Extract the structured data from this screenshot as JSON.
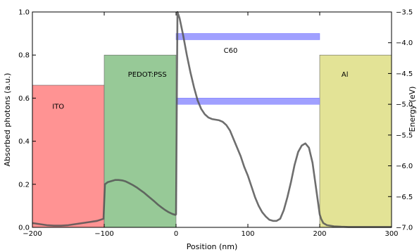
{
  "chart_data": {
    "type": "line",
    "xlabel": "Position (nm)",
    "ylabel": "Absorbed photons (a.u.)",
    "y2label": "Energy (eV)",
    "xlim": [
      -200,
      300
    ],
    "ylim": [
      0.0,
      1.0
    ],
    "y2lim": [
      -7.0,
      -3.5
    ],
    "x_ticks": [
      -200,
      -100,
      0,
      100,
      200,
      300
    ],
    "x_tick_labels": [
      "−200",
      "−100",
      "0",
      "100",
      "200",
      "300"
    ],
    "y_ticks": [
      0.0,
      0.2,
      0.4,
      0.6,
      0.8,
      1.0
    ],
    "y_tick_labels": [
      "0.0",
      "0.2",
      "0.4",
      "0.6",
      "0.8",
      "1.0"
    ],
    "y2_ticks": [
      -7.0,
      -6.5,
      -6.0,
      -5.5,
      -5.0,
      -4.5,
      -4.0,
      -3.5
    ],
    "y2_tick_labels": [
      "−7.0",
      "−6.5",
      "−6.0",
      "−5.5",
      "−5.0",
      "−4.5",
      "−4.0",
      "−3.5"
    ],
    "grid": false,
    "layers": [
      {
        "name": "ITO",
        "x_start": -200,
        "x_end": -100,
        "height": 0.66,
        "color": "#ff9393"
      },
      {
        "name": "PEDOT:PSS",
        "x_start": -100,
        "x_end": 0,
        "height": 0.8,
        "color": "#97c997"
      },
      {
        "name": "C60",
        "x_start": 0,
        "x_end": 200,
        "height": 0.0,
        "color": "#ffffff"
      },
      {
        "name": "Al",
        "x_start": 200,
        "x_end": 300,
        "height": 0.8,
        "color": "#e3e396"
      }
    ],
    "energy_levels": [
      {
        "x_start": 0,
        "x_end": 200,
        "energy": -3.9,
        "color": "#a0a0ff"
      },
      {
        "x_start": 0,
        "x_end": 200,
        "energy": -4.95,
        "color": "#a0a0ff"
      }
    ],
    "series": [
      {
        "x": [
          -200,
          -190,
          -180,
          -170,
          -160,
          -150,
          -140,
          -130,
          -120,
          -110,
          -101,
          -99,
          -95,
          -90,
          -85,
          -80,
          -75,
          -70,
          -65,
          -60,
          -55,
          -50,
          -45,
          -40,
          -35,
          -30,
          -25,
          -20,
          -15,
          -10,
          -5,
          -1,
          0,
          2,
          5,
          10,
          15,
          20,
          25,
          30,
          35,
          40,
          45,
          50,
          55,
          60,
          65,
          70,
          75,
          80,
          85,
          90,
          95,
          100,
          105,
          110,
          115,
          120,
          125,
          130,
          135,
          140,
          145,
          150,
          155,
          160,
          165,
          170,
          175,
          180,
          185,
          190,
          195,
          200,
          202,
          205,
          210,
          220,
          230,
          240,
          250,
          260,
          270,
          280,
          290,
          300
        ],
        "y": [
          0.02,
          0.015,
          0.01,
          0.008,
          0.008,
          0.01,
          0.015,
          0.02,
          0.025,
          0.03,
          0.04,
          0.2,
          0.21,
          0.215,
          0.22,
          0.22,
          0.218,
          0.213,
          0.205,
          0.196,
          0.186,
          0.174,
          0.162,
          0.148,
          0.134,
          0.12,
          0.105,
          0.092,
          0.08,
          0.07,
          0.062,
          0.058,
          0.06,
          1.0,
          0.97,
          0.89,
          0.8,
          0.72,
          0.65,
          0.59,
          0.55,
          0.525,
          0.51,
          0.503,
          0.5,
          0.497,
          0.49,
          0.475,
          0.45,
          0.41,
          0.37,
          0.33,
          0.28,
          0.24,
          0.19,
          0.14,
          0.1,
          0.07,
          0.05,
          0.035,
          0.03,
          0.03,
          0.04,
          0.08,
          0.14,
          0.21,
          0.29,
          0.35,
          0.38,
          0.39,
          0.37,
          0.3,
          0.18,
          0.06,
          0.04,
          0.02,
          0.01,
          0.005,
          0.003,
          0.002,
          0.002,
          0.002,
          0.002,
          0.002,
          0.002,
          0.002
        ],
        "color": "#555555"
      }
    ]
  }
}
